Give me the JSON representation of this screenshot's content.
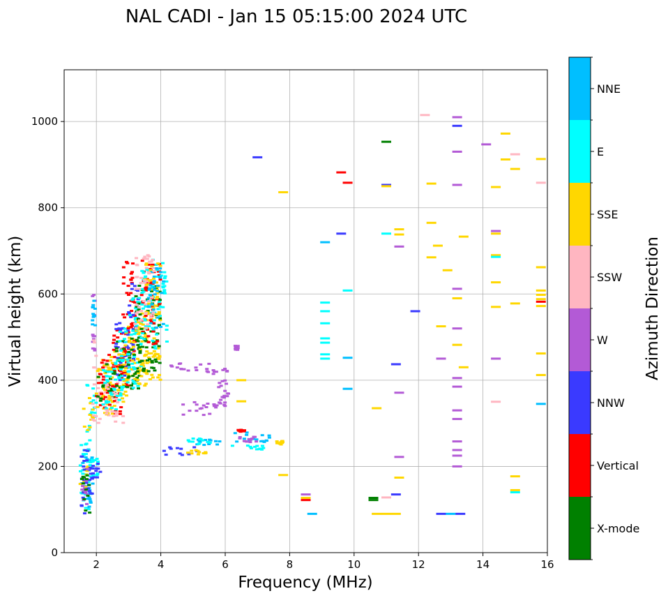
{
  "chart_data": {
    "type": "scatter",
    "title": "NAL CADI - Jan 15 05:15:00 2024 UTC",
    "xlabel": "Frequency (MHz)",
    "ylabel": "Virtual height (km)",
    "xlim": [
      1,
      16
    ],
    "ylim": [
      0,
      1120
    ],
    "x_ticks": [
      2,
      4,
      6,
      8,
      10,
      12,
      14,
      16
    ],
    "y_ticks": [
      0,
      200,
      400,
      600,
      800,
      1000
    ],
    "grid": true,
    "colorbar": {
      "label": "Azimuth Direction",
      "categories": [
        {
          "name": "X-mode",
          "color": "#008000"
        },
        {
          "name": "Vertical",
          "color": "#ff0000"
        },
        {
          "name": "NNW",
          "color": "#3a3aff"
        },
        {
          "name": "W",
          "color": "#b35ad6"
        },
        {
          "name": "SSW",
          "color": "#ffb6c1"
        },
        {
          "name": "SSE",
          "color": "#ffd700"
        },
        {
          "name": "E",
          "color": "#00ffff"
        },
        {
          "name": "NNE",
          "color": "#00bfff"
        }
      ]
    },
    "clusters": [
      {
        "cat": "NNE",
        "f": [
          1.5,
          1.9
        ],
        "h": [
          90,
          240
        ]
      },
      {
        "cat": "E",
        "f": [
          1.5,
          1.9
        ],
        "h": [
          100,
          260
        ]
      },
      {
        "cat": "SSE",
        "f": [
          1.5,
          1.8
        ],
        "h": [
          140,
          200
        ]
      },
      {
        "cat": "NNW",
        "f": [
          1.5,
          1.9
        ],
        "h": [
          90,
          240
        ]
      },
      {
        "cat": "W",
        "f": [
          1.55,
          1.75
        ],
        "h": [
          110,
          200
        ]
      },
      {
        "cat": "X-mode",
        "f": [
          1.5,
          1.8
        ],
        "h": [
          90,
          180
        ]
      },
      {
        "cat": "E",
        "f": [
          1.8,
          2.1
        ],
        "h": [
          170,
          220
        ]
      },
      {
        "cat": "NNW",
        "f": [
          1.8,
          2.2
        ],
        "h": [
          170,
          210
        ]
      },
      {
        "cat": "E",
        "f": [
          1.7,
          2.0
        ],
        "h": [
          260,
          390
        ]
      },
      {
        "cat": "SSE",
        "f": [
          1.6,
          1.9
        ],
        "h": [
          280,
          360
        ]
      },
      {
        "cat": "W",
        "f": [
          1.88,
          1.98
        ],
        "h": [
          460,
          620
        ]
      },
      {
        "cat": "NNE",
        "f": [
          1.88,
          1.98
        ],
        "h": [
          520,
          590
        ]
      },
      {
        "cat": "SSW",
        "f": [
          1.88,
          2.0
        ],
        "h": [
          300,
          500
        ]
      },
      {
        "cat": "SSW",
        "f": [
          2.0,
          2.4
        ],
        "h": [
          300,
          450
        ]
      },
      {
        "cat": "SSE",
        "f": [
          2.0,
          2.6
        ],
        "h": [
          320,
          450
        ]
      },
      {
        "cat": "Vertical",
        "f": [
          2.0,
          2.8
        ],
        "h": [
          320,
          460
        ]
      },
      {
        "cat": "X-mode",
        "f": [
          2.0,
          2.6
        ],
        "h": [
          350,
          440
        ]
      },
      {
        "cat": "SSW",
        "f": [
          2.3,
          2.9
        ],
        "h": [
          300,
          400
        ]
      },
      {
        "cat": "SSE",
        "f": [
          2.4,
          3.0
        ],
        "h": [
          350,
          480
        ]
      },
      {
        "cat": "E",
        "f": [
          2.2,
          2.8
        ],
        "h": [
          330,
          450
        ]
      },
      {
        "cat": "Vertical",
        "f": [
          2.5,
          3.2
        ],
        "h": [
          380,
          520
        ]
      },
      {
        "cat": "NNW",
        "f": [
          2.6,
          3.2
        ],
        "h": [
          400,
          540
        ]
      },
      {
        "cat": "SSE",
        "f": [
          2.8,
          3.6
        ],
        "h": [
          380,
          530
        ]
      },
      {
        "cat": "X-mode",
        "f": [
          2.6,
          3.4
        ],
        "h": [
          380,
          500
        ]
      },
      {
        "cat": "E",
        "f": [
          2.7,
          3.4
        ],
        "h": [
          380,
          520
        ]
      },
      {
        "cat": "Vertical",
        "f": [
          2.8,
          3.2
        ],
        "h": [
          520,
          690
        ]
      },
      {
        "cat": "NNW",
        "f": [
          3.0,
          3.3
        ],
        "h": [
          520,
          640
        ]
      },
      {
        "cat": "E",
        "f": [
          3.0,
          3.4
        ],
        "h": [
          500,
          600
        ]
      },
      {
        "cat": "SSE",
        "f": [
          3.2,
          4.0
        ],
        "h": [
          400,
          560
        ]
      },
      {
        "cat": "X-mode",
        "f": [
          3.2,
          4.0
        ],
        "h": [
          420,
          620
        ]
      },
      {
        "cat": "Vertical",
        "f": [
          3.4,
          4.0
        ],
        "h": [
          480,
          680
        ]
      },
      {
        "cat": "E",
        "f": [
          3.4,
          4.2
        ],
        "h": [
          470,
          680
        ]
      },
      {
        "cat": "SSE",
        "f": [
          3.5,
          4.0
        ],
        "h": [
          540,
          690
        ]
      },
      {
        "cat": "NNE",
        "f": [
          3.6,
          4.1
        ],
        "h": [
          520,
          660
        ]
      },
      {
        "cat": "SSW",
        "f": [
          3.2,
          3.8
        ],
        "h": [
          520,
          690
        ]
      },
      {
        "cat": "W",
        "f": [
          4.3,
          5.8
        ],
        "h": [
          410,
          440
        ]
      },
      {
        "cat": "W",
        "f": [
          5.9,
          6.1
        ],
        "h": [
          360,
          440
        ]
      },
      {
        "cat": "W",
        "f": [
          6.3,
          6.4
        ],
        "h": [
          470,
          480
        ]
      },
      {
        "cat": "W",
        "f": [
          4.6,
          5.8
        ],
        "h": [
          318,
          350
        ]
      },
      {
        "cat": "W",
        "f": [
          5.8,
          6.0
        ],
        "h": [
          340,
          400
        ]
      },
      {
        "cat": "NNW",
        "f": [
          4.0,
          5.2
        ],
        "h": [
          225,
          245
        ]
      },
      {
        "cat": "NNE",
        "f": [
          5.0,
          6.0
        ],
        "h": [
          245,
          262
        ]
      },
      {
        "cat": "E",
        "f": [
          4.8,
          5.6
        ],
        "h": [
          250,
          265
        ]
      },
      {
        "cat": "SSE",
        "f": [
          4.8,
          5.4
        ],
        "h": [
          228,
          238
        ]
      },
      {
        "cat": "E",
        "f": [
          6.2,
          7.2
        ],
        "h": [
          235,
          250
        ]
      },
      {
        "cat": "NNE",
        "f": [
          6.2,
          7.4
        ],
        "h": [
          255,
          285
        ]
      },
      {
        "cat": "W",
        "f": [
          6.4,
          7.0
        ],
        "h": [
          255,
          270
        ]
      },
      {
        "cat": "SSE",
        "f": [
          7.6,
          7.8
        ],
        "h": [
          250,
          260
        ]
      },
      {
        "cat": "Vertical",
        "f": [
          6.4,
          6.6
        ],
        "h": [
          280,
          285
        ]
      }
    ],
    "marks": [
      {
        "cat": "SSE",
        "f": 12.4,
        "h": 765
      },
      {
        "cat": "SSE",
        "f": 12.4,
        "h": 685
      },
      {
        "cat": "SSE",
        "f": 12.6,
        "h": 712
      },
      {
        "cat": "SSE",
        "f": 12.9,
        "h": 655
      },
      {
        "cat": "SSE",
        "f": 12.7,
        "h": 525
      },
      {
        "cat": "W",
        "f": 12.7,
        "h": 450
      },
      {
        "cat": "SSE",
        "f": 13.2,
        "h": 590
      },
      {
        "cat": "SSE",
        "f": 13.2,
        "h": 482
      },
      {
        "cat": "SSE",
        "f": 13.4,
        "h": 430
      },
      {
        "cat": "SSE",
        "f": 13.4,
        "h": 733
      },
      {
        "cat": "W",
        "f": 13.2,
        "h": 612
      },
      {
        "cat": "W",
        "f": 13.2,
        "h": 520
      },
      {
        "cat": "W",
        "f": 13.2,
        "h": 405
      },
      {
        "cat": "W",
        "f": 13.2,
        "h": 385
      },
      {
        "cat": "W",
        "f": 13.2,
        "h": 330
      },
      {
        "cat": "W",
        "f": 13.2,
        "h": 310
      },
      {
        "cat": "W",
        "f": 13.2,
        "h": 258
      },
      {
        "cat": "W",
        "f": 13.2,
        "h": 238
      },
      {
        "cat": "W",
        "f": 13.2,
        "h": 225
      },
      {
        "cat": "W",
        "f": 13.2,
        "h": 200
      },
      {
        "cat": "W",
        "f": 13.2,
        "h": 1010
      },
      {
        "cat": "NNW",
        "f": 13.2,
        "h": 990
      },
      {
        "cat": "W",
        "f": 13.2,
        "h": 930
      },
      {
        "cat": "W",
        "f": 13.2,
        "h": 853
      },
      {
        "cat": "NNW",
        "f": 12.7,
        "h": 90
      },
      {
        "cat": "NNE",
        "f": 13.0,
        "h": 90
      },
      {
        "cat": "NNW",
        "f": 13.3,
        "h": 90
      },
      {
        "cat": "SSE",
        "f": 12.4,
        "h": 856
      },
      {
        "cat": "SSW",
        "f": 12.2,
        "h": 1015
      },
      {
        "cat": "SSE",
        "f": 14.4,
        "h": 848
      },
      {
        "cat": "SSE",
        "f": 14.4,
        "h": 740
      },
      {
        "cat": "SSE",
        "f": 14.4,
        "h": 690
      },
      {
        "cat": "SSE",
        "f": 14.4,
        "h": 627
      },
      {
        "cat": "SSE",
        "f": 14.4,
        "h": 570
      },
      {
        "cat": "W",
        "f": 14.4,
        "h": 746
      },
      {
        "cat": "W",
        "f": 14.4,
        "h": 450
      },
      {
        "cat": "E",
        "f": 14.4,
        "h": 686
      },
      {
        "cat": "W",
        "f": 14.1,
        "h": 947
      },
      {
        "cat": "SSE",
        "f": 14.7,
        "h": 972
      },
      {
        "cat": "SSE",
        "f": 14.7,
        "h": 912
      },
      {
        "cat": "SSE",
        "f": 15.0,
        "h": 890
      },
      {
        "cat": "SSW",
        "f": 15.0,
        "h": 924
      },
      {
        "cat": "SSE",
        "f": 15.0,
        "h": 578
      },
      {
        "cat": "SSW",
        "f": 14.4,
        "h": 350
      },
      {
        "cat": "SSE",
        "f": 15.0,
        "h": 177
      },
      {
        "cat": "SSE",
        "f": 15.0,
        "h": 145
      },
      {
        "cat": "E",
        "f": 15.0,
        "h": 140
      },
      {
        "cat": "SSE",
        "f": 15.8,
        "h": 913
      },
      {
        "cat": "SSW",
        "f": 15.8,
        "h": 858
      },
      {
        "cat": "SSE",
        "f": 15.8,
        "h": 662
      },
      {
        "cat": "SSE",
        "f": 15.8,
        "h": 608
      },
      {
        "cat": "SSE",
        "f": 15.8,
        "h": 598
      },
      {
        "cat": "SSE",
        "f": 15.8,
        "h": 588
      },
      {
        "cat": "Vertical",
        "f": 15.8,
        "h": 582
      },
      {
        "cat": "SSE",
        "f": 15.8,
        "h": 572
      },
      {
        "cat": "SSE",
        "f": 15.8,
        "h": 462
      },
      {
        "cat": "SSE",
        "f": 15.8,
        "h": 412
      },
      {
        "cat": "NNE",
        "f": 15.8,
        "h": 345
      },
      {
        "cat": "E",
        "f": 9.1,
        "h": 580
      },
      {
        "cat": "E",
        "f": 9.1,
        "h": 560
      },
      {
        "cat": "E",
        "f": 9.1,
        "h": 532
      },
      {
        "cat": "E",
        "f": 9.1,
        "h": 497
      },
      {
        "cat": "E",
        "f": 9.1,
        "h": 487
      },
      {
        "cat": "E",
        "f": 9.1,
        "h": 460
      },
      {
        "cat": "E",
        "f": 9.1,
        "h": 450
      },
      {
        "cat": "NNE",
        "f": 9.1,
        "h": 720
      },
      {
        "cat": "NNW",
        "f": 9.6,
        "h": 740
      },
      {
        "cat": "Vertical",
        "f": 9.6,
        "h": 882
      },
      {
        "cat": "Vertical",
        "f": 9.8,
        "h": 858
      },
      {
        "cat": "E",
        "f": 9.8,
        "h": 608
      },
      {
        "cat": "NNE",
        "f": 9.8,
        "h": 452
      },
      {
        "cat": "NNE",
        "f": 9.8,
        "h": 380
      },
      {
        "cat": "X-mode",
        "f": 11.0,
        "h": 953
      },
      {
        "cat": "NNW",
        "f": 11.0,
        "h": 853
      },
      {
        "cat": "SSE",
        "f": 11.0,
        "h": 850
      },
      {
        "cat": "E",
        "f": 11.0,
        "h": 740
      },
      {
        "cat": "NNW",
        "f": 11.3,
        "h": 437
      },
      {
        "cat": "SSE",
        "f": 11.4,
        "h": 750
      },
      {
        "cat": "SSE",
        "f": 11.4,
        "h": 738
      },
      {
        "cat": "W",
        "f": 11.4,
        "h": 710
      },
      {
        "cat": "W",
        "f": 11.4,
        "h": 371
      },
      {
        "cat": "NNW",
        "f": 11.9,
        "h": 560
      },
      {
        "cat": "W",
        "f": 11.4,
        "h": 222
      },
      {
        "cat": "SSE",
        "f": 11.4,
        "h": 174
      },
      {
        "cat": "NNW",
        "f": 11.3,
        "h": 135
      },
      {
        "cat": "SSE",
        "f": 10.7,
        "h": 335
      },
      {
        "cat": "X-mode",
        "f": 10.6,
        "h": 127
      },
      {
        "cat": "X-mode",
        "f": 10.6,
        "h": 122
      },
      {
        "cat": "SSE",
        "f": 10.7,
        "h": 90
      },
      {
        "cat": "SSE",
        "f": 11.0,
        "h": 90
      },
      {
        "cat": "SSE",
        "f": 11.3,
        "h": 90
      },
      {
        "cat": "SSW",
        "f": 11.0,
        "h": 128
      },
      {
        "cat": "NNW",
        "f": 7.0,
        "h": 917
      },
      {
        "cat": "SSE",
        "f": 7.8,
        "h": 836
      },
      {
        "cat": "SSE",
        "f": 7.8,
        "h": 180
      },
      {
        "cat": "SSE",
        "f": 6.5,
        "h": 400
      },
      {
        "cat": "SSE",
        "f": 6.5,
        "h": 351
      },
      {
        "cat": "W",
        "f": 8.5,
        "h": 135
      },
      {
        "cat": "SSE",
        "f": 8.5,
        "h": 127
      },
      {
        "cat": "Vertical",
        "f": 8.5,
        "h": 122
      },
      {
        "cat": "NNE",
        "f": 8.7,
        "h": 90
      }
    ]
  }
}
